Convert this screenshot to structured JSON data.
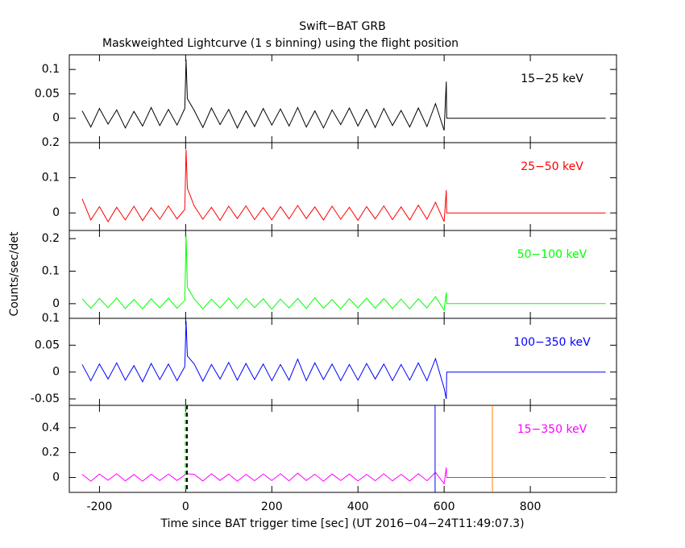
{
  "header": {
    "title": "Swift−BAT GRB",
    "subtitle": "Maskweighted Lightcurve (1 s binning) using the flight position",
    "xlabel": "Time since BAT trigger time [sec] (UT 2016−04−24T11:49:07.3)",
    "ylabel": "Counts/sec/det"
  },
  "chart_data": [
    {
      "type": "line",
      "label": "15−25 keV",
      "color": "#000000",
      "xlim": [
        -270,
        1000
      ],
      "xticks": [
        -200,
        0,
        200,
        400,
        600,
        800
      ],
      "ylim": [
        -0.05,
        0.13
      ],
      "yticks": [
        0,
        0.05,
        0.1
      ],
      "x": [
        -240,
        -220,
        -200,
        -180,
        -160,
        -140,
        -120,
        -100,
        -80,
        -60,
        -40,
        -20,
        -2,
        1,
        4,
        20,
        40,
        60,
        80,
        100,
        120,
        140,
        160,
        180,
        200,
        220,
        240,
        260,
        280,
        300,
        320,
        340,
        360,
        380,
        400,
        420,
        440,
        460,
        480,
        500,
        520,
        540,
        560,
        580,
        600,
        605,
        606,
        975
      ],
      "values": [
        0.015,
        -0.018,
        0.02,
        -0.012,
        0.017,
        -0.02,
        0.014,
        -0.016,
        0.022,
        -0.015,
        0.018,
        -0.014,
        0.02,
        0.12,
        0.04,
        0.016,
        -0.019,
        0.021,
        -0.013,
        0.018,
        -0.02,
        0.015,
        -0.017,
        0.02,
        -0.014,
        0.019,
        -0.016,
        0.022,
        -0.018,
        0.015,
        -0.02,
        0.017,
        -0.013,
        0.021,
        -0.016,
        0.018,
        -0.019,
        0.02,
        -0.015,
        0.016,
        -0.018,
        0.021,
        -0.017,
        0.03,
        -0.025,
        0.075,
        0,
        0
      ]
    },
    {
      "type": "line",
      "label": "25−50 keV",
      "color": "#ff0000",
      "xlim": [
        -270,
        1000
      ],
      "xticks": [
        -200,
        0,
        200,
        400,
        600,
        800
      ],
      "ylim": [
        -0.05,
        0.2
      ],
      "yticks": [
        0,
        0.1,
        0.2
      ],
      "x": [
        -240,
        -220,
        -200,
        -180,
        -160,
        -140,
        -120,
        -100,
        -80,
        -60,
        -40,
        -20,
        -2,
        1,
        4,
        20,
        40,
        60,
        80,
        100,
        120,
        140,
        160,
        180,
        200,
        220,
        240,
        260,
        280,
        300,
        320,
        340,
        360,
        380,
        400,
        420,
        440,
        460,
        480,
        500,
        520,
        540,
        560,
        580,
        600,
        605,
        606,
        975
      ],
      "values": [
        0.04,
        -0.02,
        0.018,
        -0.025,
        0.016,
        -0.02,
        0.019,
        -0.022,
        0.015,
        -0.018,
        0.02,
        -0.017,
        0.01,
        0.18,
        0.07,
        0.02,
        -0.018,
        0.016,
        -0.021,
        0.019,
        -0.016,
        0.02,
        -0.019,
        0.015,
        -0.02,
        0.018,
        -0.017,
        0.021,
        -0.016,
        0.017,
        -0.02,
        0.019,
        -0.018,
        0.016,
        -0.021,
        0.018,
        -0.017,
        0.02,
        -0.019,
        0.017,
        -0.02,
        0.022,
        -0.018,
        0.03,
        -0.025,
        0.065,
        0,
        0
      ]
    },
    {
      "type": "line",
      "label": "50−100 keV",
      "color": "#00ff00",
      "xlim": [
        -270,
        1000
      ],
      "xticks": [
        -200,
        0,
        200,
        400,
        600,
        800
      ],
      "ylim": [
        -0.045,
        0.225
      ],
      "yticks": [
        0,
        0.1,
        0.2
      ],
      "x": [
        -240,
        -220,
        -200,
        -180,
        -160,
        -140,
        -120,
        -100,
        -80,
        -60,
        -40,
        -20,
        -2,
        1,
        4,
        20,
        40,
        60,
        80,
        100,
        120,
        140,
        160,
        180,
        200,
        220,
        240,
        260,
        280,
        300,
        320,
        340,
        360,
        380,
        400,
        420,
        440,
        460,
        480,
        500,
        520,
        540,
        560,
        580,
        600,
        605,
        606,
        975
      ],
      "values": [
        0.015,
        -0.014,
        0.016,
        -0.012,
        0.018,
        -0.015,
        0.013,
        -0.016,
        0.015,
        -0.013,
        0.017,
        -0.014,
        0.01,
        0.21,
        0.05,
        0.015,
        -0.016,
        0.014,
        -0.013,
        0.017,
        -0.015,
        0.016,
        -0.012,
        0.015,
        -0.017,
        0.014,
        -0.013,
        0.016,
        -0.015,
        0.018,
        -0.014,
        0.013,
        -0.016,
        0.015,
        -0.013,
        0.017,
        -0.014,
        0.016,
        -0.015,
        0.014,
        -0.016,
        0.015,
        -0.013,
        0.022,
        -0.02,
        0.035,
        0,
        0
      ]
    },
    {
      "type": "line",
      "label": "100−350 keV",
      "color": "#0000ff",
      "xlim": [
        -270,
        1000
      ],
      "xticks": [
        -200,
        0,
        200,
        400,
        600,
        800
      ],
      "ylim": [
        -0.062,
        0.1
      ],
      "yticks": [
        -0.05,
        0,
        0.05,
        0.1
      ],
      "x": [
        -240,
        -220,
        -200,
        -180,
        -160,
        -140,
        -120,
        -100,
        -80,
        -60,
        -40,
        -20,
        -2,
        1,
        4,
        20,
        40,
        60,
        80,
        100,
        120,
        140,
        160,
        180,
        200,
        220,
        240,
        260,
        280,
        300,
        320,
        340,
        360,
        380,
        400,
        420,
        440,
        460,
        480,
        500,
        520,
        540,
        560,
        580,
        600,
        605,
        606,
        975
      ],
      "values": [
        0.014,
        -0.016,
        0.015,
        -0.013,
        0.017,
        -0.015,
        0.012,
        -0.018,
        0.016,
        -0.014,
        0.015,
        -0.016,
        0.01,
        0.095,
        0.03,
        0.015,
        -0.017,
        0.014,
        -0.013,
        0.018,
        -0.015,
        0.016,
        -0.014,
        0.015,
        -0.016,
        0.014,
        -0.015,
        0.024,
        -0.016,
        0.017,
        -0.014,
        0.015,
        -0.016,
        0.014,
        -0.015,
        0.016,
        -0.013,
        0.015,
        -0.016,
        0.014,
        -0.015,
        0.017,
        -0.016,
        0.025,
        -0.03,
        -0.05,
        0,
        0
      ]
    },
    {
      "type": "line",
      "label": "15−350 keV",
      "color": "#ff00ff",
      "xlim": [
        -270,
        1000
      ],
      "xticks": [
        -200,
        0,
        200,
        400,
        600,
        800
      ],
      "ylim": [
        -0.12,
        0.58
      ],
      "yticks": [
        0,
        0.2,
        0.4
      ],
      "x": [
        -240,
        -220,
        -200,
        -180,
        -160,
        -140,
        -120,
        -100,
        -80,
        -60,
        -40,
        -20,
        -2,
        1,
        4,
        20,
        40,
        60,
        80,
        100,
        120,
        140,
        160,
        180,
        200,
        220,
        240,
        260,
        280,
        300,
        320,
        340,
        360,
        380,
        400,
        420,
        440,
        460,
        480,
        500,
        520,
        540,
        560,
        580,
        600,
        605,
        606,
        975
      ],
      "values": [
        0.025,
        -0.03,
        0.028,
        -0.022,
        0.03,
        -0.027,
        0.024,
        -0.03,
        0.026,
        -0.025,
        0.028,
        -0.024,
        0.02,
        0.04,
        0.03,
        0.025,
        -0.028,
        0.03,
        -0.024,
        0.027,
        -0.03,
        0.025,
        -0.026,
        0.028,
        -0.025,
        0.03,
        -0.027,
        0.035,
        -0.024,
        0.026,
        -0.03,
        0.028,
        -0.025,
        0.027,
        -0.028,
        0.025,
        -0.026,
        0.03,
        -0.027,
        0.025,
        -0.028,
        0.03,
        -0.026,
        0.04,
        -0.05,
        0.08,
        0,
        0
      ],
      "vlines": [
        {
          "x": 0,
          "color": "#00ff00",
          "dashed": true
        },
        {
          "x": 3,
          "color": "#000000",
          "dashed": true
        },
        {
          "x": 579,
          "color": "#0000ff",
          "dashed": false
        },
        {
          "x": 712,
          "color": "#ff8000",
          "dashed": false
        }
      ]
    }
  ]
}
